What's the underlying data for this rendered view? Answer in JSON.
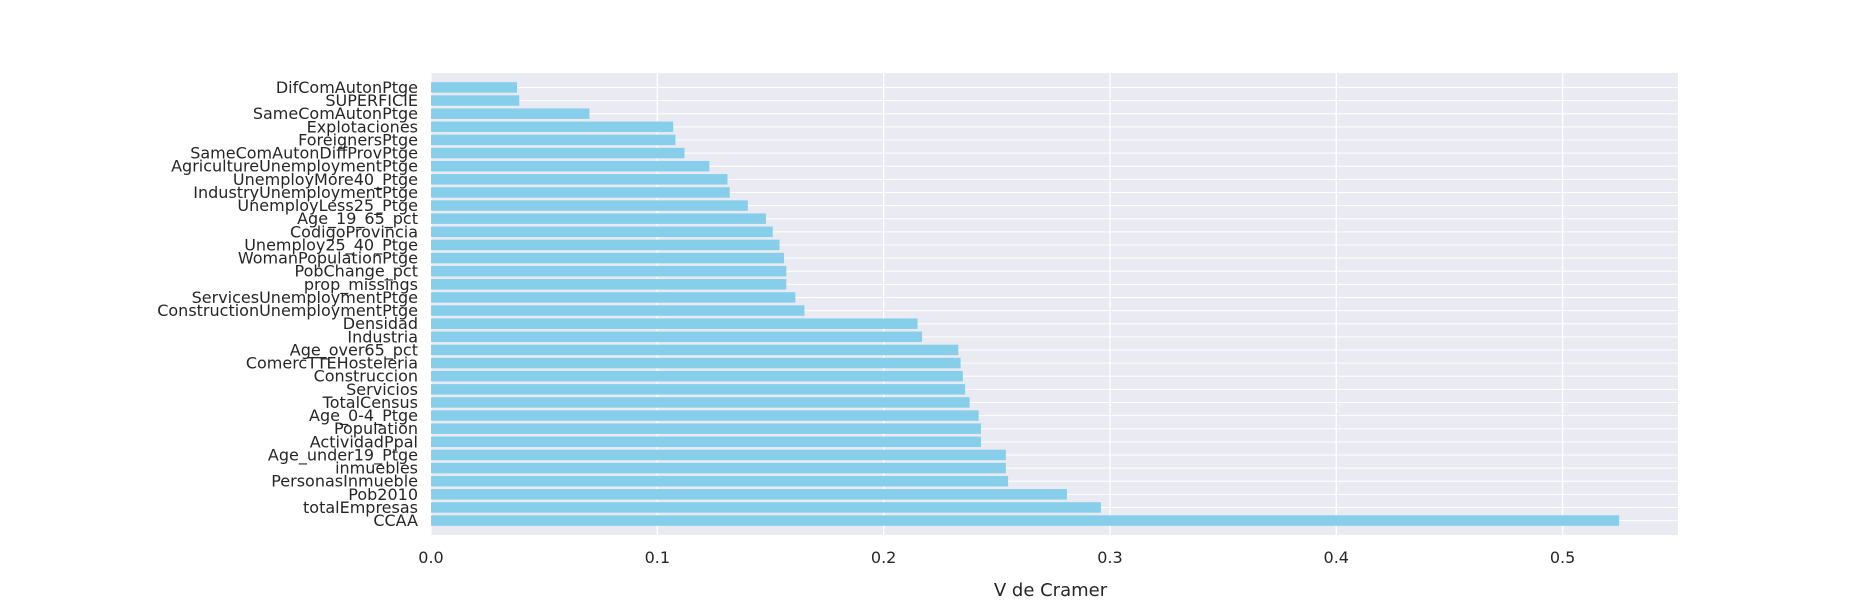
{
  "chart_data": {
    "type": "bar",
    "orientation": "horizontal",
    "title": "",
    "xlabel": "V de Cramer",
    "ylabel": "",
    "xlim": [
      0,
      0.551
    ],
    "xticks": [
      0.0,
      0.1,
      0.2,
      0.3,
      0.4,
      0.5
    ],
    "xtick_labels": [
      "0.0",
      "0.1",
      "0.2",
      "0.3",
      "0.4",
      "0.5"
    ],
    "grid": true,
    "legend": "none",
    "bar_color": "#87CEEB",
    "background_color": "#EAEAF2",
    "grid_color": "#FFFFFF",
    "categories": [
      "CCAA",
      "totalEmpresas",
      "Pob2010",
      "PersonasInmueble",
      "inmuebles",
      "Age_under19_Ptge",
      "ActividadPpal",
      "Population",
      "Age_0-4_Ptge",
      "TotalCensus",
      "Servicios",
      "Construccion",
      "ComercTTEHosteleria",
      "Age_over65_pct",
      "Industria",
      "Densidad",
      "ConstructionUnemploymentPtge",
      "ServicesUnemploymentPtge",
      "prop_missings",
      "PobChange_pct",
      "WomanPopulationPtge",
      "Unemploy25_40_Ptge",
      "CodigoProvincia",
      "Age_19_65_pct",
      "UnemployLess25_Ptge",
      "IndustryUnemploymentPtge",
      "UnemployMore40_Ptge",
      "AgricultureUnemploymentPtge",
      "SameComAutonDiffProvPtge",
      "ForeignersPtge",
      "Explotaciones",
      "SameComAutonPtge",
      "SUPERFICIE",
      "DifComAutonPtge"
    ],
    "values": [
      0.525,
      0.296,
      0.281,
      0.255,
      0.254,
      0.254,
      0.243,
      0.243,
      0.242,
      0.238,
      0.236,
      0.235,
      0.234,
      0.233,
      0.217,
      0.215,
      0.165,
      0.161,
      0.157,
      0.157,
      0.156,
      0.154,
      0.151,
      0.148,
      0.14,
      0.132,
      0.131,
      0.123,
      0.112,
      0.108,
      0.107,
      0.07,
      0.039,
      0.038
    ]
  }
}
